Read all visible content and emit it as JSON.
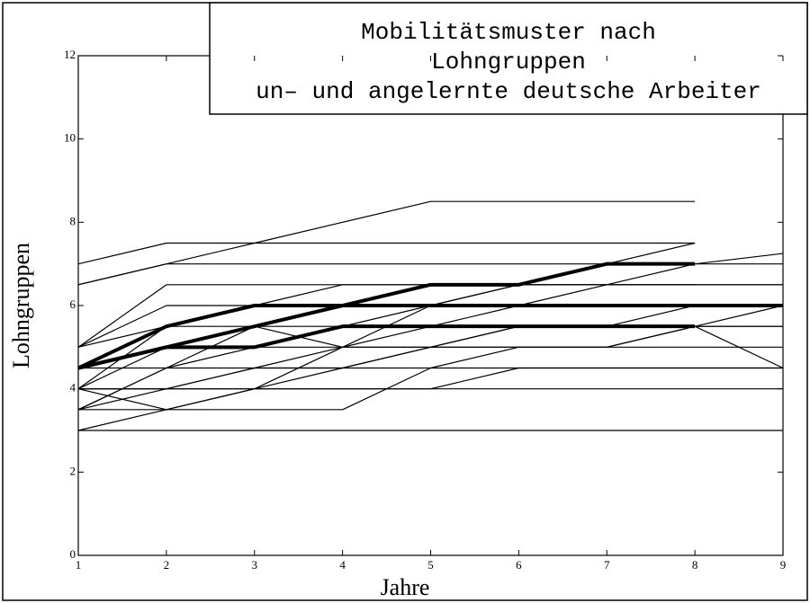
{
  "chart_data": {
    "type": "line",
    "title": [
      "Mobilitätsmuster nach",
      "Lohngruppen",
      "un– und angelernte deutsche Arbeiter"
    ],
    "xlabel": "Jahre",
    "ylabel": "Lohngruppen",
    "x": [
      1,
      2,
      3,
      4,
      5,
      6,
      7,
      8,
      9
    ],
    "xlim": [
      1,
      9
    ],
    "xticks": [
      1,
      2,
      3,
      4,
      5,
      6,
      7,
      8,
      9
    ],
    "ylim": [
      0,
      12
    ],
    "yticks": [
      0,
      2,
      4,
      6,
      8,
      10,
      12
    ],
    "color": "#000000",
    "grid": false,
    "series": [
      {
        "values": [
          7,
          7.5,
          7.5,
          7.5,
          7.5,
          7.5,
          7.5,
          7.5,
          null
        ]
      },
      {
        "values": [
          6.5,
          7,
          7.5,
          8,
          8.5,
          8.5,
          8.5,
          8.5,
          null
        ]
      },
      {
        "values": [
          6.5,
          7,
          7,
          7,
          7,
          7,
          7,
          7,
          7
        ]
      },
      {
        "values": [
          5,
          6.5,
          6.5,
          6.5,
          6.5,
          6.5,
          6.5,
          6.5,
          6.5
        ]
      },
      {
        "values": [
          5,
          6,
          6,
          6,
          6.5,
          6.5,
          7,
          7.5,
          null
        ]
      },
      {
        "values": [
          4,
          5.5,
          5.5,
          6,
          6,
          6.5,
          7,
          7,
          7.25
        ]
      },
      {
        "values": [
          4.5,
          5,
          5.5,
          5.5,
          6,
          6.5,
          6.5,
          7,
          null
        ]
      },
      {
        "values": [
          4,
          5,
          5,
          5.5,
          5.5,
          6,
          6,
          6,
          6
        ]
      },
      {
        "values": [
          3.5,
          4.5,
          5,
          5,
          5,
          5.5,
          5.5,
          5.5,
          5.5
        ]
      },
      {
        "values": [
          4,
          4,
          4.5,
          4.5,
          5,
          5,
          5,
          5,
          5
        ]
      },
      {
        "values": [
          3.5,
          4,
          4.5,
          5,
          5,
          5,
          5,
          5.5,
          4.5
        ]
      },
      {
        "values": [
          4.5,
          4.5,
          4.5,
          4.5,
          4.5,
          4.5,
          4.5,
          4.5,
          4.5
        ]
      },
      {
        "values": [
          4,
          4,
          4,
          4,
          4,
          4.5,
          4.5,
          4.5,
          4.5
        ]
      },
      {
        "values": [
          3.5,
          3.5,
          3.5,
          3.5,
          4.5,
          5,
          5,
          5.5,
          6
        ]
      },
      {
        "values": [
          4,
          4,
          4,
          4,
          4,
          4,
          4,
          4,
          4
        ]
      },
      {
        "values": [
          3,
          3,
          3,
          3,
          3,
          3,
          3,
          3,
          3
        ]
      },
      {
        "values": [
          5,
          5.5,
          6,
          6.5,
          6.5,
          6.5,
          6.5,
          6.5,
          null
        ]
      },
      {
        "values": [
          4,
          3.5,
          4,
          4.5,
          5,
          5.5,
          5.5,
          5.5,
          5.5
        ]
      },
      {
        "values": [
          3.5,
          4.5,
          5.5,
          5,
          6,
          6,
          6.5,
          6.5,
          6.5
        ]
      },
      {
        "values": [
          3,
          3.5,
          4,
          5,
          5.5,
          5.5,
          5.5,
          6,
          6
        ]
      },
      {
        "values": [
          4.5,
          5.5,
          6,
          6,
          6.5,
          6.5,
          7,
          7,
          null
        ],
        "bold": true
      },
      {
        "values": [
          4.5,
          5,
          5.5,
          6,
          6,
          6,
          6,
          6,
          6
        ],
        "bold": true
      },
      {
        "values": [
          4.5,
          5,
          5,
          5.5,
          5.5,
          5.5,
          5.5,
          5.5,
          null
        ],
        "bold": true
      }
    ]
  }
}
